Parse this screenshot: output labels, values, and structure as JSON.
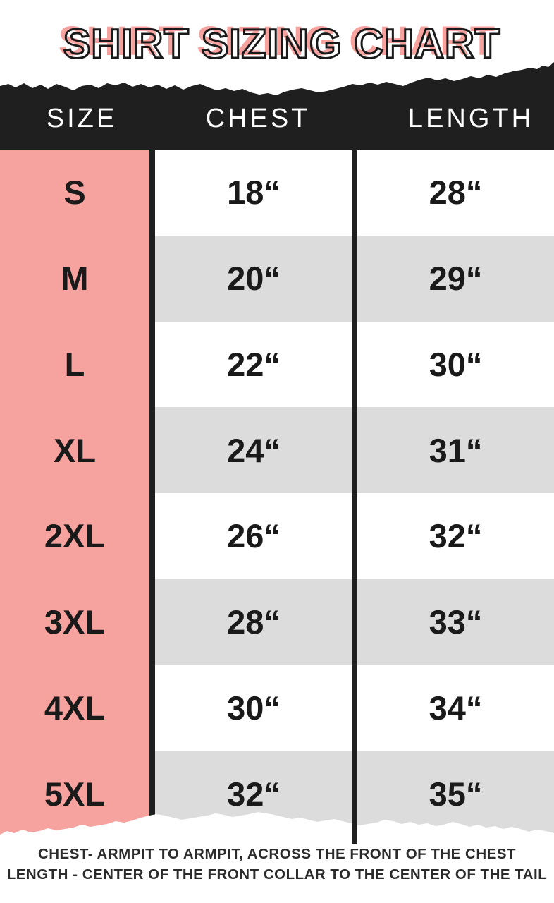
{
  "title": "SHIRT SIZING CHART",
  "header": {
    "size": "SIZE",
    "chest": "CHEST",
    "length": "LENGTH"
  },
  "rows": [
    {
      "size": "S",
      "chest": "18“",
      "length": "28“"
    },
    {
      "size": "M",
      "chest": "20“",
      "length": "29“"
    },
    {
      "size": "L",
      "chest": "22“",
      "length": "30“"
    },
    {
      "size": "XL",
      "chest": "24“",
      "length": "31“"
    },
    {
      "size": "2XL",
      "chest": "26“",
      "length": "32“"
    },
    {
      "size": "3XL",
      "chest": "28“",
      "length": "33“"
    },
    {
      "size": "4XL",
      "chest": "30“",
      "length": "34“"
    },
    {
      "size": "5XL",
      "chest": "32“",
      "length": "35“"
    }
  ],
  "footer": {
    "line1": "CHEST- ARMPIT TO ARMPIT, ACROSS THE FRONT OF THE CHEST",
    "line2": "LENGTH - CENTER OF THE FRONT COLLAR TO THE CENTER OF THE TAIL"
  },
  "colors": {
    "accent_pink": "#f6a3a0",
    "band_black": "#1f1f1f",
    "row_gray": "#dcdcdc",
    "text_dark": "#1a1a1a"
  },
  "chart_data": {
    "type": "table",
    "title": "SHIRT SIZING CHART",
    "columns": [
      "SIZE",
      "CHEST",
      "LENGTH"
    ],
    "rows": [
      [
        "S",
        "18\"",
        "28\""
      ],
      [
        "M",
        "20\"",
        "29\""
      ],
      [
        "L",
        "22\"",
        "30\""
      ],
      [
        "XL",
        "24\"",
        "31\""
      ],
      [
        "2XL",
        "26\"",
        "32\""
      ],
      [
        "3XL",
        "28\"",
        "33\""
      ],
      [
        "4XL",
        "30\"",
        "34\""
      ],
      [
        "5XL",
        "32\"",
        "35\""
      ]
    ],
    "notes": [
      "CHEST- ARMPIT TO ARMPIT, ACROSS THE FRONT OF THE CHEST",
      "LENGTH - CENTER OF THE FRONT COLLAR TO THE CENTER OF THE TAIL"
    ]
  }
}
